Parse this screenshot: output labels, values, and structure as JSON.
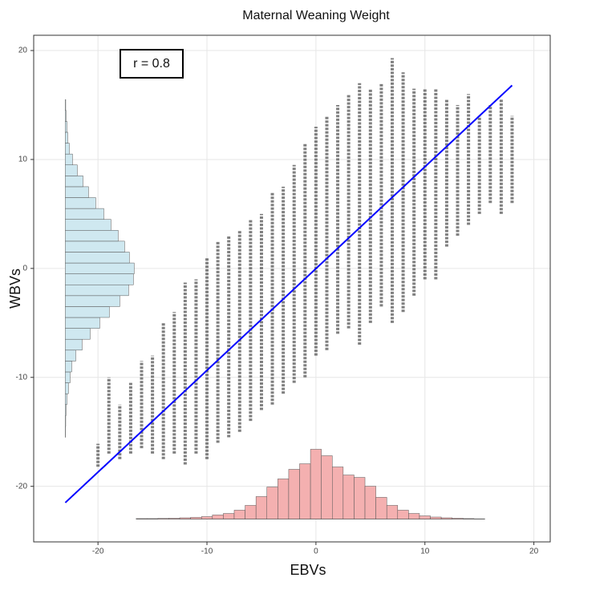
{
  "chart_data": {
    "type": "scatter",
    "title": "Maternal Weaning Weight",
    "x_label": "EBVs",
    "y_label": "WBVs",
    "annotation": "r = 0.8",
    "xlim": [
      -25.9,
      21.5
    ],
    "ylim": [
      -25.1,
      21.4
    ],
    "xticks": [
      -20,
      -10,
      0,
      10,
      20
    ],
    "yticks": [
      -20,
      -10,
      0,
      10,
      20
    ],
    "grid": true,
    "point_color": "#555555",
    "columns": {
      "x": [
        -20,
        -19,
        -18,
        -17,
        -16,
        -15,
        -14,
        -13,
        -12,
        -11,
        -10,
        -9,
        -8,
        -7,
        -6,
        -5,
        -4,
        -3,
        -2,
        -1,
        0,
        1,
        2,
        3,
        4,
        5,
        6,
        7,
        8,
        9,
        10,
        11,
        12,
        13,
        14,
        15,
        16,
        17,
        18
      ],
      "y_low": [
        -18.2,
        -17,
        -17.5,
        -17,
        -16.5,
        -17,
        -17.5,
        -17,
        -18,
        -17,
        -17.5,
        -16,
        -15.5,
        -15,
        -14,
        -13,
        -12.5,
        -11.5,
        -10.5,
        -10,
        -8,
        -7.5,
        -6,
        -5.5,
        -7,
        -5,
        -3.5,
        -5,
        -4,
        -2.5,
        -1,
        -1,
        2,
        3,
        4,
        5,
        6,
        5,
        6
      ],
      "y_high": [
        -16.1,
        -10,
        -12.5,
        -10.5,
        -8.5,
        -8,
        -5,
        -4,
        -1.3,
        -1,
        1,
        2.5,
        3,
        3.5,
        4.5,
        5,
        7,
        7.5,
        9.5,
        11.5,
        13,
        14,
        15,
        16,
        17,
        16.5,
        17,
        19.3,
        18,
        16.5,
        16.5,
        16.5,
        15.5,
        15,
        16,
        14,
        15,
        15.5,
        14
      ]
    },
    "fit": {
      "color": "#0000ff",
      "x": [
        -23,
        18
      ],
      "y": [
        -21.5,
        16.8
      ]
    },
    "x_histogram": {
      "color": "#f4b0b0",
      "baseline": -23,
      "bins": [
        -16.5,
        -15.5,
        -14.5,
        -13.5,
        -12.5,
        -11.5,
        -10.5,
        -9.5,
        -8.5,
        -7.5,
        -6.5,
        -5.5,
        -4.5,
        -3.5,
        -2.5,
        -1.5,
        -0.5,
        0.5,
        1.5,
        2.5,
        3.5,
        4.5,
        5.5,
        6.5,
        7.5,
        8.5,
        9.5,
        10.5,
        11.5,
        12.5,
        13.5,
        14.5,
        15.5
      ],
      "values": [
        0.04,
        0.04,
        0.06,
        0.07,
        0.11,
        0.15,
        0.22,
        0.37,
        0.51,
        0.81,
        1.25,
        2.06,
        2.94,
        3.68,
        4.56,
        5.07,
        6.4,
        5.81,
        4.78,
        4.04,
        3.82,
        3.01,
        1.99,
        1.25,
        0.81,
        0.51,
        0.29,
        0.18,
        0.11,
        0.07,
        0.04,
        0.02
      ]
    },
    "y_histogram": {
      "color": "#cfe8f0",
      "baseline": -23,
      "bins": [
        -15.5,
        -14.5,
        -13.5,
        -12.5,
        -11.5,
        -10.5,
        -9.5,
        -8.5,
        -7.5,
        -6.5,
        -5.5,
        -4.5,
        -3.5,
        -2.5,
        -1.5,
        -0.5,
        0.5,
        1.5,
        2.5,
        3.5,
        4.5,
        5.5,
        6.5,
        7.5,
        8.5,
        9.5,
        10.5,
        11.5,
        12.5,
        13.5,
        14.5,
        15.5
      ],
      "values": [
        0.02,
        0.04,
        0.07,
        0.15,
        0.29,
        0.44,
        0.59,
        0.96,
        1.54,
        2.28,
        3.16,
        4.04,
        5.0,
        5.81,
        6.25,
        6.32,
        5.88,
        5.44,
        4.85,
        4.19,
        3.53,
        2.79,
        2.13,
        1.62,
        1.1,
        0.66,
        0.37,
        0.22,
        0.15,
        0.07,
        0.04
      ]
    }
  }
}
